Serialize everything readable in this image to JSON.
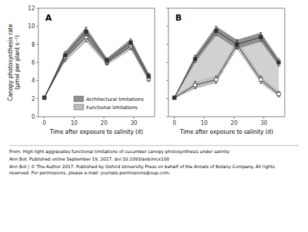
{
  "chart_data": [
    {
      "type": "line",
      "annotations": [
        "A",
        "From: High light aggravates functional limitations of cucumber canopy photosynthesis under salinity",
        "Ann Bot. Published online  September 19, 2017. doi:10.1093/aob/mcx100",
        "Ann Bot | © The Author 2017. Published by Oxford University Press on behalf of the Annals of Botany Company. All rights\nreserved. For permissions, please e-mail: journals.permissions@oup.com."
      ],
      "x_label": "Time after exposure to salinity (d)",
      "y_label": "Canopy photosynthesis rate\n(μmol per plant s⁻¹)",
      "x": [
        0,
        7,
        14,
        21,
        29,
        35
      ],
      "series": [
        {
          "name": "Architectural limitations",
          "color": "#909090",
          "marker": "square",
          "values": [
            2.1,
            6.8,
            9.4,
            6.2,
            8.2,
            4.5
          ],
          "errors": [
            0.1,
            0.4,
            0.5,
            0.3,
            0.4,
            0.3
          ]
        },
        {
          "name": "Functional limitations",
          "color": "#c8c8c8",
          "marker": "square-open",
          "values": [
            2.1,
            6.5,
            8.8,
            6.0,
            7.8,
            4.2
          ],
          "errors": [
            0.1,
            0.4,
            0.5,
            0.3,
            0.4,
            0.3
          ]
        }
      ],
      "xlim": [
        -2,
        37
      ],
      "xticks": [
        0,
        10,
        20,
        30
      ],
      "ylim": [
        0,
        12
      ],
      "yticks": [
        0,
        2,
        4,
        6,
        8,
        10,
        12
      ],
      "legend": "lower right"
    },
    {
      "type": "line",
      "annotations": [
        "B"
      ],
      "x_label": "Time after exposure to salinity (d)",
      "x": [
        0,
        7,
        14,
        21,
        29,
        35
      ],
      "series": [
        {
          "color": "#909090",
          "marker": "square",
          "values": [
            2.1,
            6.4,
            9.5,
            8.0,
            8.8,
            6.0
          ],
          "errors": [
            0.1,
            0.4,
            0.5,
            0.5,
            0.5,
            0.4
          ]
        },
        {
          "color": "#c8c8c8",
          "marker": "square-open",
          "values": [
            2.1,
            3.5,
            4.1,
            8.0,
            4.1,
            2.5
          ],
          "errors": [
            0.1,
            0.4,
            0.4,
            0.5,
            0.4,
            0.3
          ]
        }
      ],
      "xlim": [
        -2,
        37
      ],
      "xticks": [
        0,
        10,
        20,
        30
      ],
      "ylim": [
        0,
        12
      ],
      "yticks": [
        0,
        2,
        4,
        6,
        8,
        10,
        12
      ],
      "tick_labels": "x"
    }
  ]
}
